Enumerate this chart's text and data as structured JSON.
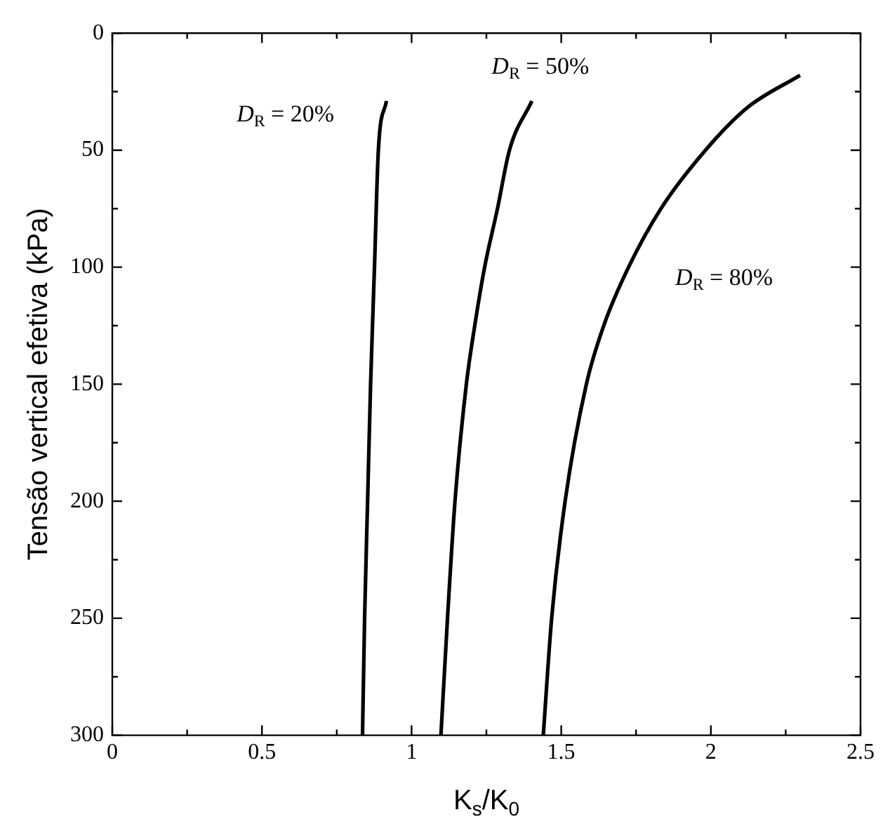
{
  "chart_data": {
    "type": "line",
    "xlabel": "K$_{s}$/K$_{0}$",
    "ylabel": "Tensão vertical efetiva (kPa)",
    "xlim": [
      0,
      2.5
    ],
    "ylim": [
      300,
      0
    ],
    "xticks": [
      0,
      {
        "value": 0.25,
        "label": null
      },
      0.5,
      {
        "value": 0.75,
        "label": null
      },
      1,
      {
        "value": 1.25,
        "label": null
      },
      1.5,
      {
        "value": 1.75,
        "label": null
      },
      2,
      {
        "value": 2.25,
        "label": null
      },
      2.5
    ],
    "yticks": [
      0,
      {
        "value": 25,
        "label": null
      },
      50,
      {
        "value": 75,
        "label": null
      },
      100,
      {
        "value": 125,
        "label": null
      },
      150,
      {
        "value": 175,
        "label": null
      },
      200,
      {
        "value": 225,
        "label": null
      },
      250,
      {
        "value": 275,
        "label": null
      },
      300
    ],
    "grid": false,
    "marker": "none",
    "line_style": "solid",
    "series": [
      {
        "name": "D$_{R}$ = 20%",
        "color": "#000000",
        "x": [
          0.916,
          0.889,
          0.876,
          0.863,
          0.853,
          0.843,
          0.836
        ],
        "values": [
          29,
          50,
          100,
          150,
          200,
          250,
          300
        ]
      },
      {
        "name": "D$_{R}$ = 50%",
        "color": "#000000",
        "x": [
          1.402,
          1.327,
          1.287,
          1.244,
          1.211,
          1.183,
          1.145,
          1.12,
          1.098
        ],
        "values": [
          29,
          50,
          75,
          100,
          125,
          150,
          200,
          250,
          300
        ]
      },
      {
        "name": "D$_{R}$ = 80%",
        "color": "#000000",
        "x": [
          2.298,
          2.12,
          1.982,
          1.833,
          1.725,
          1.642,
          1.584,
          1.513,
          1.468,
          1.44
        ],
        "values": [
          18,
          32,
          50,
          75,
          100,
          125,
          150,
          200,
          250,
          300
        ]
      }
    ]
  }
}
